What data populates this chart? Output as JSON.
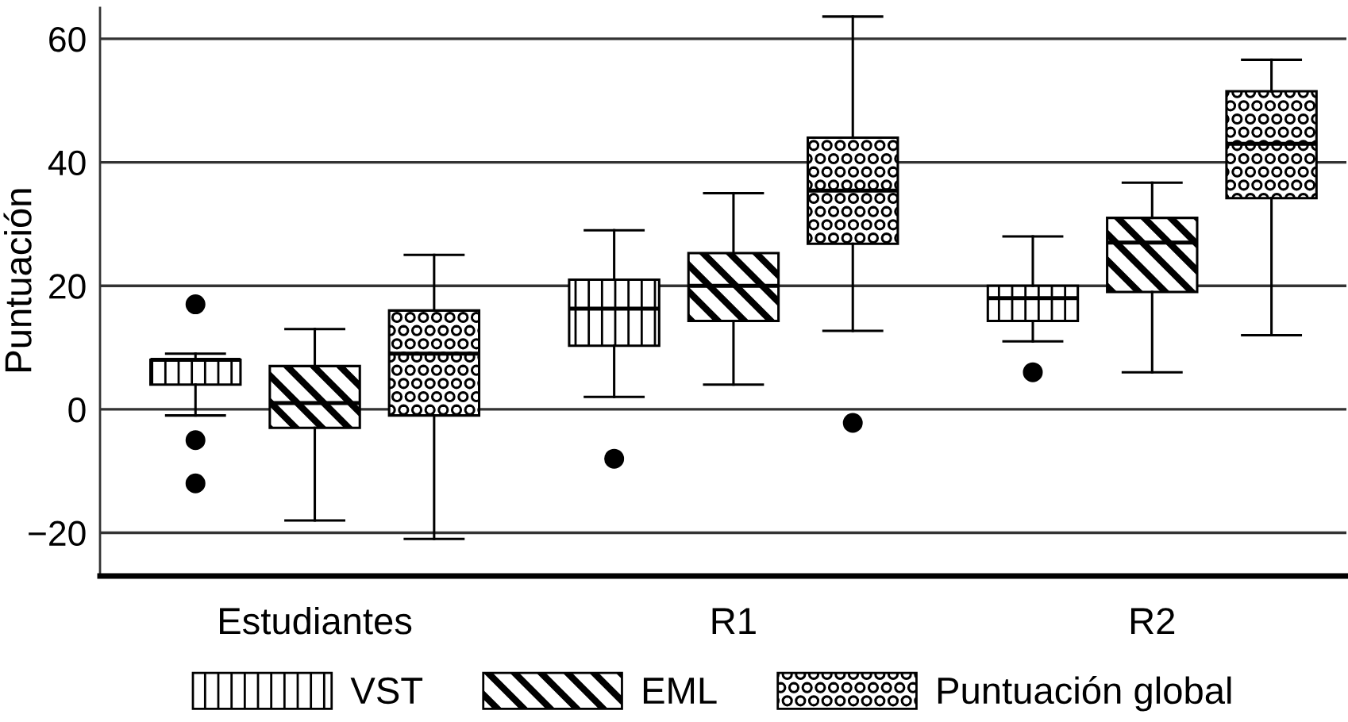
{
  "chart_data": {
    "type": "box",
    "ylabel": "Puntuación",
    "categories": [
      "Estudiantes",
      "R1",
      "R2"
    ],
    "series": [
      {
        "name": "VST",
        "color": "#000000",
        "boxes": [
          {
            "low": -1,
            "q1": 4,
            "median": 8,
            "q3": 8,
            "high": 9,
            "outliers": [
              17,
              -5,
              -12
            ]
          },
          {
            "low": 2,
            "q1": 10.3,
            "median": 16.3,
            "q3": 21,
            "high": 29,
            "outliers": [
              -8
            ]
          },
          {
            "low": 11,
            "q1": 14.3,
            "median": 18,
            "q3": 20,
            "high": 28,
            "outliers": [
              6
            ]
          }
        ]
      },
      {
        "name": "EML",
        "color": "#000000",
        "boxes": [
          {
            "low": -18,
            "q1": -3,
            "median": 1,
            "q3": 7,
            "high": 13
          },
          {
            "low": 4,
            "q1": 14.3,
            "median": 20,
            "q3": 25.3,
            "high": 35
          },
          {
            "low": 6,
            "q1": 19,
            "median": 27,
            "q3": 31,
            "high": 36.7
          }
        ]
      },
      {
        "name": "Puntuación global",
        "color": "#000000",
        "boxes": [
          {
            "low": -21,
            "q1": -1,
            "median": 9,
            "q3": 16,
            "high": 25
          },
          {
            "low": 12.7,
            "q1": 26.8,
            "median": 35.4,
            "q3": 44,
            "high": 63.6,
            "outliers": [
              -2.2
            ]
          },
          {
            "low": 12,
            "q1": 34.2,
            "median": 43,
            "q3": 51.5,
            "high": 56.6
          }
        ]
      }
    ],
    "ylim": [
      -27,
      65
    ],
    "yticks": [
      {
        "value": -20,
        "label": "−20"
      },
      0,
      20,
      40,
      60
    ],
    "grid": "y",
    "legend": "bottom"
  }
}
